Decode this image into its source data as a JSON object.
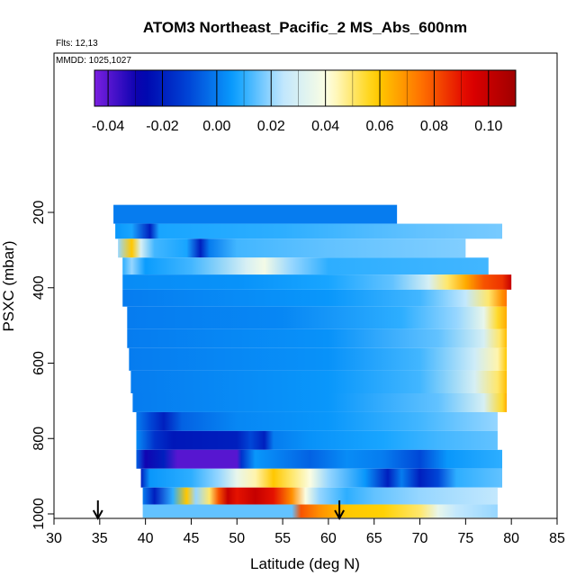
{
  "chart_data": {
    "type": "heatmap",
    "title": "ATOM3 Northeast_Pacific_2 MS_Abs_600nm",
    "annotations": [
      "Flts: 12,13",
      "MMDD: 1025,1027"
    ],
    "xlabel": "Latitude (deg N)",
    "ylabel": "PSXC (mbar)",
    "xlim": [
      30,
      85
    ],
    "ylim": [
      1000,
      0
    ],
    "x_ticks": [
      30,
      35,
      40,
      45,
      50,
      55,
      60,
      65,
      70,
      75,
      80,
      85
    ],
    "y_ticks": [
      200,
      400,
      600,
      800,
      1000
    ],
    "colorbar": {
      "range": [
        -0.045,
        0.11
      ],
      "ticks": [
        -0.04,
        -0.02,
        0.0,
        0.02,
        0.04,
        0.06,
        0.08,
        0.1
      ],
      "tick_labels": [
        "-0.04",
        "-0.02",
        "0.00",
        "0.02",
        "0.04",
        "0.06",
        "0.08",
        "0.10"
      ],
      "colors": [
        "#7b1fe0",
        "#0000aa",
        "#0044d6",
        "#0aa0ff",
        "#bfe6ff",
        "#ffffe0",
        "#ffd000",
        "#ff7000",
        "#e00000",
        "#a00000"
      ]
    },
    "arrows_at_latitude": [
      34.8,
      61.2
    ],
    "layers": [
      {
        "p_top": 180,
        "p_bot": 230,
        "lat_min": 36.5,
        "lat_max": 67.5,
        "stops": [
          [
            36.5,
            0.0
          ],
          [
            67.5,
            0.0
          ]
        ]
      },
      {
        "p_top": 230,
        "p_bot": 270,
        "lat_min": 36.7,
        "lat_max": 79.0,
        "stops": [
          [
            36.7,
            0.005
          ],
          [
            38.5,
            0.008
          ],
          [
            40.5,
            -0.02
          ],
          [
            41.5,
            0.008
          ],
          [
            55.0,
            0.01
          ],
          [
            70.0,
            0.015
          ],
          [
            79.0,
            0.017
          ]
        ]
      },
      {
        "p_top": 270,
        "p_bot": 320,
        "lat_min": 37.0,
        "lat_max": 75.0,
        "stops": [
          [
            37.0,
            0.02
          ],
          [
            38.5,
            0.06
          ],
          [
            39.5,
            0.03
          ],
          [
            41.0,
            0.012
          ],
          [
            44.5,
            0.008
          ],
          [
            46.0,
            -0.02
          ],
          [
            47.0,
            0.0
          ],
          [
            50.0,
            0.012
          ],
          [
            60.0,
            0.015
          ],
          [
            75.0,
            0.018
          ]
        ]
      },
      {
        "p_top": 320,
        "p_bot": 365,
        "lat_min": 37.5,
        "lat_max": 77.5,
        "stops": [
          [
            37.5,
            0.01
          ],
          [
            38.5,
            0.02
          ],
          [
            40.0,
            0.006
          ],
          [
            45.0,
            0.012
          ],
          [
            51.0,
            0.03
          ],
          [
            53.0,
            0.038
          ],
          [
            56.0,
            0.02
          ],
          [
            60.0,
            0.01
          ],
          [
            77.5,
            0.012
          ]
        ]
      },
      {
        "p_top": 365,
        "p_bot": 405,
        "lat_min": 37.5,
        "lat_max": 80.0,
        "stops": [
          [
            37.5,
            0.003
          ],
          [
            50.0,
            0.004
          ],
          [
            60.0,
            0.008
          ],
          [
            67.0,
            0.015
          ],
          [
            71.0,
            0.03
          ],
          [
            73.0,
            0.05
          ],
          [
            75.0,
            0.065
          ],
          [
            77.0,
            0.08
          ],
          [
            79.0,
            0.085
          ],
          [
            80.0,
            0.1
          ]
        ]
      },
      {
        "p_top": 405,
        "p_bot": 450,
        "lat_min": 37.5,
        "lat_max": 79.5,
        "stops": [
          [
            37.5,
            0.0
          ],
          [
            60.0,
            0.005
          ],
          [
            70.0,
            0.012
          ],
          [
            75.0,
            0.025
          ],
          [
            77.5,
            0.05
          ],
          [
            79.0,
            0.07
          ],
          [
            79.5,
            0.075
          ]
        ]
      },
      {
        "p_top": 450,
        "p_bot": 510,
        "lat_min": 38.0,
        "lat_max": 79.5,
        "stops": [
          [
            38.0,
            0.0
          ],
          [
            55.0,
            0.002
          ],
          [
            68.0,
            0.01
          ],
          [
            74.0,
            0.02
          ],
          [
            77.0,
            0.035
          ],
          [
            78.5,
            0.055
          ],
          [
            79.5,
            0.065
          ]
        ]
      },
      {
        "p_top": 510,
        "p_bot": 560,
        "lat_min": 38.0,
        "lat_max": 79.5,
        "stops": [
          [
            38.0,
            0.0
          ],
          [
            60.0,
            0.004
          ],
          [
            72.0,
            0.015
          ],
          [
            77.0,
            0.03
          ],
          [
            78.7,
            0.05
          ],
          [
            79.5,
            0.062
          ]
        ]
      },
      {
        "p_top": 560,
        "p_bot": 620,
        "lat_min": 38.2,
        "lat_max": 79.5,
        "stops": [
          [
            38.2,
            0.0
          ],
          [
            60.0,
            0.004
          ],
          [
            70.0,
            0.012
          ],
          [
            76.0,
            0.028
          ],
          [
            78.5,
            0.045
          ],
          [
            79.5,
            0.06
          ]
        ]
      },
      {
        "p_top": 620,
        "p_bot": 680,
        "lat_min": 38.4,
        "lat_max": 79.5,
        "stops": [
          [
            38.4,
            0.0
          ],
          [
            60.0,
            0.005
          ],
          [
            70.0,
            0.012
          ],
          [
            76.0,
            0.03
          ],
          [
            78.5,
            0.05
          ],
          [
            79.5,
            0.062
          ]
        ]
      },
      {
        "p_top": 680,
        "p_bot": 730,
        "lat_min": 38.6,
        "lat_max": 79.5,
        "stops": [
          [
            38.6,
            0.0
          ],
          [
            60.0,
            0.005
          ],
          [
            72.0,
            0.015
          ],
          [
            77.0,
            0.03
          ],
          [
            79.0,
            0.055
          ],
          [
            79.5,
            0.065
          ]
        ]
      },
      {
        "p_top": 730,
        "p_bot": 780,
        "lat_min": 39.0,
        "lat_max": 78.5,
        "stops": [
          [
            39.0,
            0.0
          ],
          [
            40.5,
            -0.01
          ],
          [
            42.0,
            -0.02
          ],
          [
            44.0,
            -0.005
          ],
          [
            50.0,
            0.002
          ],
          [
            60.0,
            0.005
          ],
          [
            70.0,
            0.012
          ],
          [
            78.5,
            0.02
          ]
        ]
      },
      {
        "p_top": 780,
        "p_bot": 830,
        "lat_min": 39.0,
        "lat_max": 78.5,
        "stops": [
          [
            39.0,
            0.003
          ],
          [
            41.0,
            -0.015
          ],
          [
            43.0,
            -0.022
          ],
          [
            50.0,
            -0.02
          ],
          [
            51.5,
            -0.01
          ],
          [
            53.0,
            -0.02
          ],
          [
            54.0,
            0.0
          ],
          [
            58.0,
            0.004
          ],
          [
            66.0,
            0.008
          ],
          [
            72.0,
            0.012
          ],
          [
            78.5,
            0.015
          ]
        ]
      },
      {
        "p_top": 830,
        "p_bot": 880,
        "lat_min": 39.0,
        "lat_max": 79.0,
        "stops": [
          [
            39.0,
            -0.005
          ],
          [
            40.0,
            -0.03
          ],
          [
            42.0,
            -0.02
          ],
          [
            43.5,
            -0.04
          ],
          [
            50.0,
            -0.04
          ],
          [
            50.5,
            -0.015
          ],
          [
            52.0,
            0.005
          ],
          [
            55.0,
            0.0
          ],
          [
            58.0,
            -0.005
          ],
          [
            62.0,
            0.003
          ],
          [
            66.0,
            0.0
          ],
          [
            70.0,
            -0.01
          ],
          [
            73.0,
            0.005
          ],
          [
            79.0,
            0.01
          ]
        ]
      },
      {
        "p_top": 880,
        "p_bot": 930,
        "lat_min": 39.5,
        "lat_max": 79.0,
        "stops": [
          [
            39.5,
            -0.02
          ],
          [
            40.5,
            0.005
          ],
          [
            45.0,
            0.01
          ],
          [
            48.0,
            0.02
          ],
          [
            50.0,
            0.035
          ],
          [
            52.0,
            0.045
          ],
          [
            54.0,
            0.06
          ],
          [
            56.0,
            0.05
          ],
          [
            58.0,
            0.04
          ],
          [
            60.0,
            0.02
          ],
          [
            64.0,
            0.005
          ],
          [
            66.5,
            -0.02
          ],
          [
            68.0,
            0.0
          ],
          [
            70.0,
            -0.02
          ],
          [
            72.0,
            -0.01
          ],
          [
            74.0,
            0.01
          ],
          [
            79.0,
            0.015
          ]
        ]
      },
      {
        "p_top": 930,
        "p_bot": 975,
        "lat_min": 39.7,
        "lat_max": 78.5,
        "stops": [
          [
            39.7,
            0.0
          ],
          [
            41.0,
            -0.02
          ],
          [
            43.0,
            0.01
          ],
          [
            44.5,
            0.06
          ],
          [
            45.5,
            0.02
          ],
          [
            47.0,
            0.05
          ],
          [
            48.0,
            0.08
          ],
          [
            49.0,
            0.1
          ],
          [
            50.0,
            0.09
          ],
          [
            52.0,
            0.1
          ],
          [
            54.0,
            0.09
          ],
          [
            56.0,
            0.07
          ],
          [
            57.5,
            0.04
          ],
          [
            59.0,
            0.02
          ],
          [
            62.0,
            0.01
          ],
          [
            65.0,
            0.015
          ],
          [
            70.0,
            0.02
          ],
          [
            78.5,
            0.025
          ]
        ]
      },
      {
        "p_top": 975,
        "p_bot": 1010,
        "lat_min": 39.7,
        "lat_max": 78.5,
        "stops": [
          [
            39.7,
            0.015
          ],
          [
            56.0,
            0.015
          ],
          [
            57.0,
            0.08
          ],
          [
            59.0,
            0.07
          ],
          [
            62.0,
            0.06
          ],
          [
            66.0,
            0.058
          ],
          [
            70.0,
            0.05
          ],
          [
            72.0,
            0.035
          ],
          [
            74.0,
            0.025
          ],
          [
            78.5,
            0.02
          ]
        ]
      }
    ]
  }
}
